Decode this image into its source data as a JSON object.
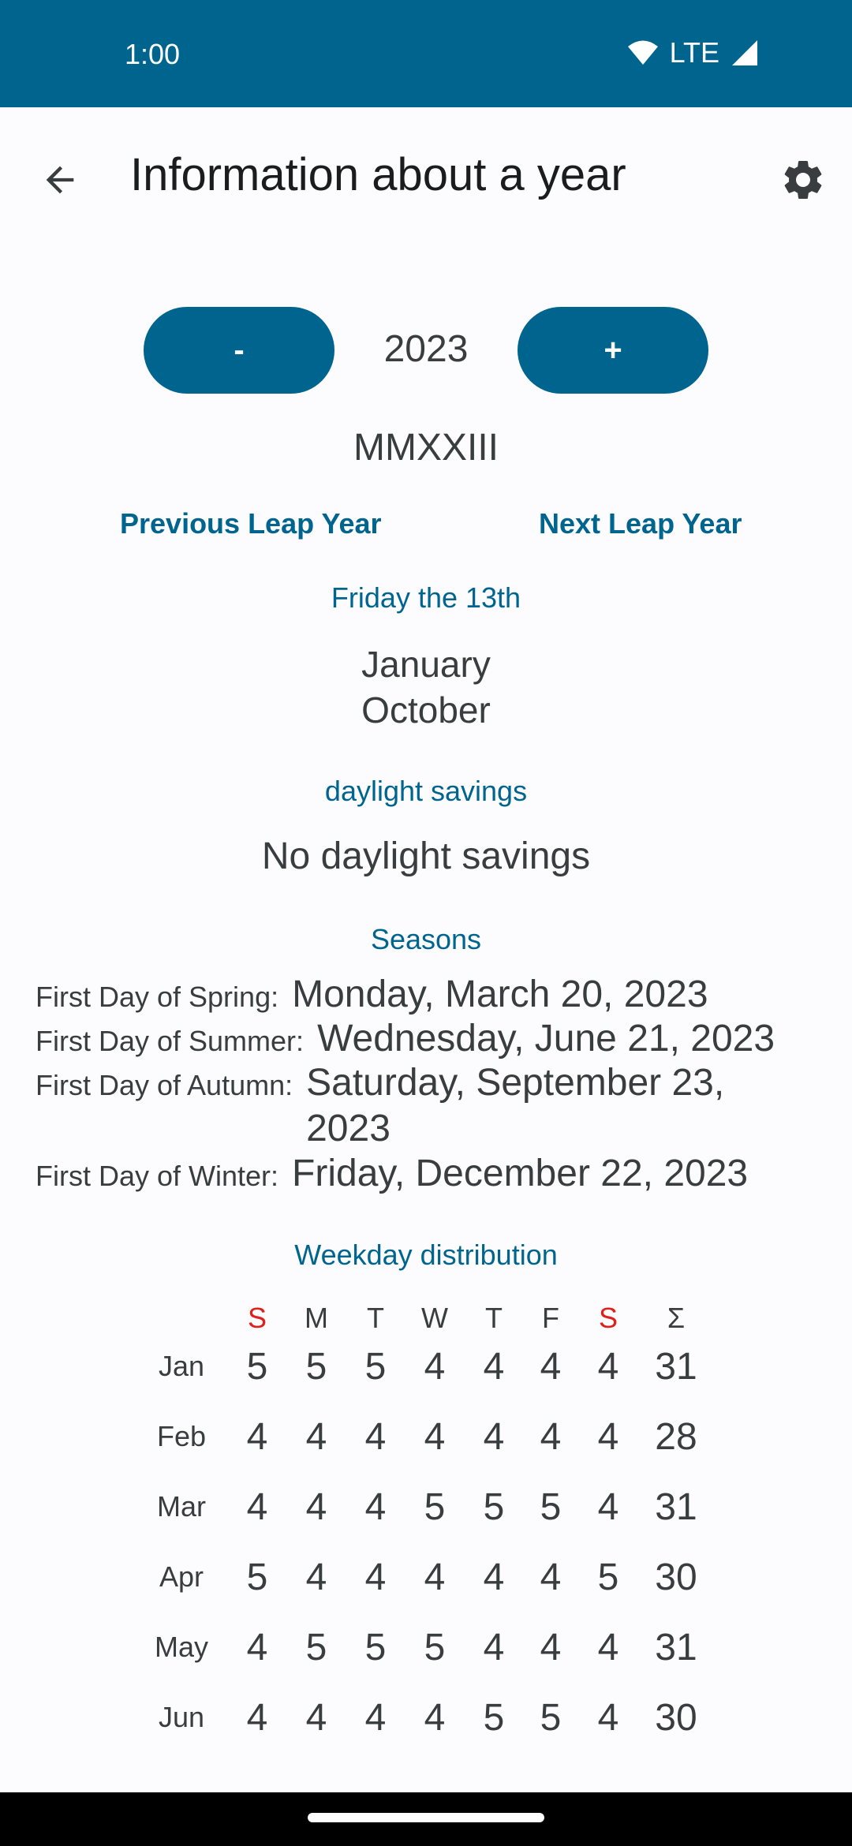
{
  "status": {
    "time": "1:00",
    "network": "LTE"
  },
  "app_bar": {
    "title": "Information about a year"
  },
  "year": {
    "decrement_label": "-",
    "value": "2023",
    "increment_label": "+",
    "roman": "MMXXIII"
  },
  "leap": {
    "previous_label": "Previous Leap Year",
    "next_label": "Next Leap Year"
  },
  "friday13": {
    "title": "Friday the 13th",
    "months": [
      "January",
      "October"
    ]
  },
  "dst": {
    "title": "daylight savings",
    "value": "No daylight savings"
  },
  "seasons": {
    "title": "Seasons",
    "rows": [
      {
        "label": "First Day of Spring:",
        "value": "Monday, March 20, 2023"
      },
      {
        "label": "First Day of Summer:",
        "value": "Wednesday, June 21, 2023"
      },
      {
        "label": "First Day of Autumn:",
        "value": "Saturday, September 23, 2023"
      },
      {
        "label": "First Day of Winter:",
        "value": "Friday, December 22, 2023"
      }
    ]
  },
  "weekday": {
    "title": "Weekday distribution",
    "headers": [
      "S",
      "M",
      "T",
      "W",
      "T",
      "F",
      "S",
      "Σ"
    ],
    "weekend_color": "#e0201a",
    "rows": [
      {
        "month": "Jan",
        "values": [
          "5",
          "5",
          "5",
          "4",
          "4",
          "4",
          "4",
          "31"
        ]
      },
      {
        "month": "Feb",
        "values": [
          "4",
          "4",
          "4",
          "4",
          "4",
          "4",
          "4",
          "28"
        ]
      },
      {
        "month": "Mar",
        "values": [
          "4",
          "4",
          "4",
          "5",
          "5",
          "5",
          "4",
          "31"
        ]
      },
      {
        "month": "Apr",
        "values": [
          "5",
          "4",
          "4",
          "4",
          "4",
          "4",
          "5",
          "30"
        ]
      },
      {
        "month": "May",
        "values": [
          "4",
          "5",
          "5",
          "5",
          "4",
          "4",
          "4",
          "31"
        ]
      },
      {
        "month": "Jun",
        "values": [
          "4",
          "4",
          "4",
          "4",
          "5",
          "5",
          "4",
          "30"
        ]
      }
    ]
  },
  "colors": {
    "primary": "#00658e",
    "background": "#fcfcff"
  }
}
